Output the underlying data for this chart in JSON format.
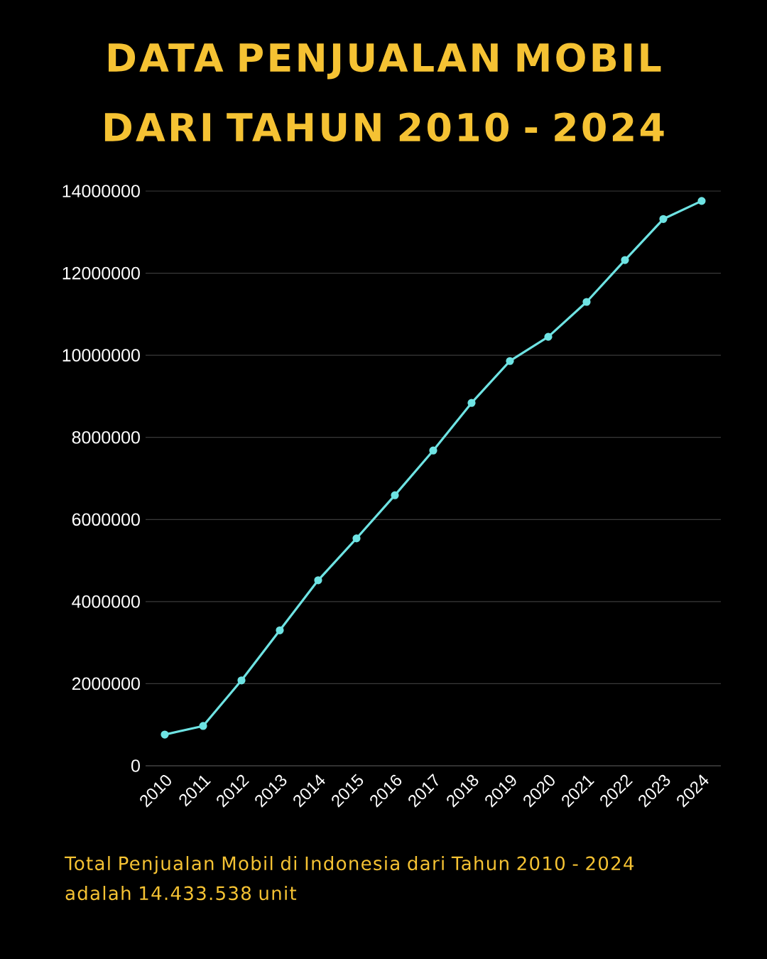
{
  "chart_data": {
    "type": "line",
    "title": "DATA PENJUALAN MOBIL DARI TAHUN 2010 - 2024",
    "categories": [
      "2010",
      "2011",
      "2012",
      "2013",
      "2014",
      "2015",
      "2016",
      "2017",
      "2018",
      "2019",
      "2020",
      "2021",
      "2022",
      "2023",
      "2024"
    ],
    "series": [
      {
        "color": "#6ee3e3",
        "values": [
          760000,
          970000,
          2080000,
          3300000,
          4520000,
          5540000,
          6590000,
          7680000,
          8840000,
          9860000,
          10450000,
          11300000,
          12320000,
          13320000,
          13760000
        ]
      }
    ],
    "ylim": [
      0,
      14000000
    ],
    "yticks": [
      0,
      2000000,
      4000000,
      6000000,
      8000000,
      10000000,
      12000000,
      14000000
    ],
    "grid": "y",
    "marker": "circle",
    "annotations": [
      "Total Penjualan Mobil di Indonesia dari Tahun 2010 - 2024 adalah 14.433.538 unit"
    ]
  }
}
